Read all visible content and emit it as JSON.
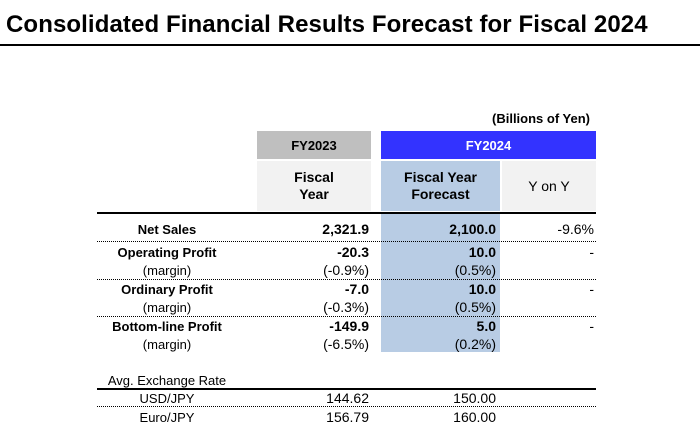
{
  "title": "Consolidated Financial Results Forecast for Fiscal 2024",
  "unit": "(Billions of Yen)",
  "header": {
    "fy2023": "FY2023",
    "fy2024": "FY2024",
    "fy2023_sub": [
      "Fiscal",
      "Year"
    ],
    "forecast_sub": [
      "Fiscal Year",
      "Forecast"
    ],
    "yoy_sub": "Y on Y"
  },
  "rows": {
    "net_sales": {
      "label": "Net Sales",
      "fy2023": "2,321.9",
      "forecast": "2,100.0",
      "yoy": "-9.6%"
    },
    "operating_profit": {
      "label": "Operating Profit",
      "fy2023": "-20.3",
      "forecast": "10.0",
      "yoy": "-"
    },
    "operating_margin": {
      "label": "(margin)",
      "fy2023": "(-0.9%)",
      "forecast": "(0.5%)"
    },
    "ordinary_profit": {
      "label": "Ordinary Profit",
      "fy2023": "-7.0",
      "forecast": "10.0",
      "yoy": "-"
    },
    "ordinary_margin": {
      "label": "(margin)",
      "fy2023": "(-0.3%)",
      "forecast": "(0.5%)"
    },
    "bottom_line_profit": {
      "label": "Bottom-line Profit",
      "fy2023": "-149.9",
      "forecast": "5.0",
      "yoy": "-"
    },
    "bottom_line_margin": {
      "label": "(margin)",
      "fy2023": "(-6.5%)",
      "forecast": "(0.2%)"
    }
  },
  "exchange": {
    "label": "Avg. Exchange Rate",
    "usd": {
      "label": "USD/JPY",
      "fy2023": "144.62",
      "forecast": "150.00"
    },
    "eur": {
      "label": "Euro/JPY",
      "fy2023": "156.79",
      "forecast": "160.00"
    }
  },
  "colors": {
    "fy2024_header": "#3333ff",
    "fy2023_header": "#bfbfbf",
    "forecast_column": "#b8cce4",
    "subheader": "#f2f2f2"
  }
}
